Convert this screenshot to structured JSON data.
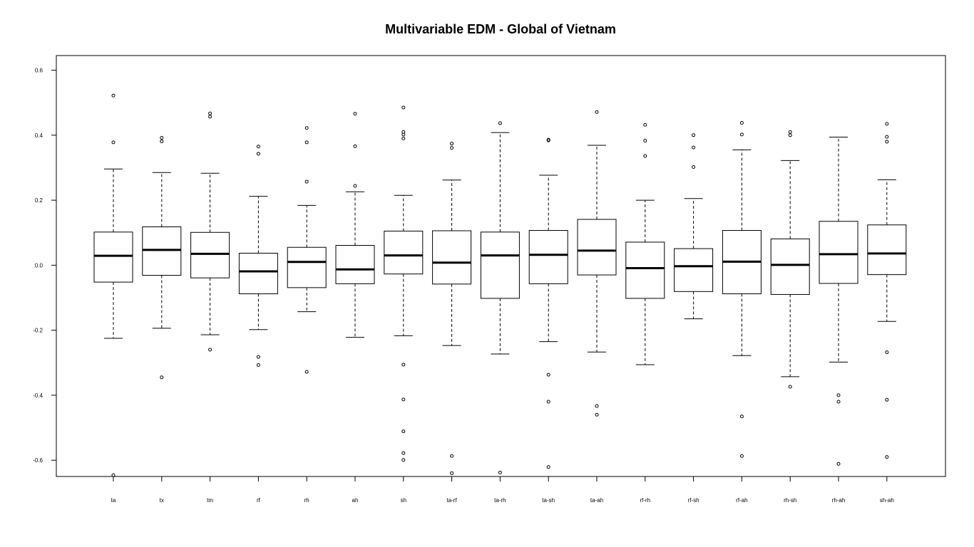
{
  "chart_data": {
    "type": "boxplot",
    "title": "Multivariable EDM - Global of Vietnam",
    "xlabel": "",
    "ylabel": "",
    "ylim": [
      -0.65,
      0.645
    ],
    "yticks": [
      -0.6,
      -0.4,
      -0.2,
      0.0,
      0.2,
      0.4,
      0.6
    ],
    "ytick_labels": [
      "-0.6",
      "-0.4",
      "-0.2",
      "0.0",
      "0.2",
      "0.4",
      "0.6"
    ],
    "grid": false,
    "categories": [
      "ta",
      "tx",
      "tm",
      "rf",
      "rh",
      "ah",
      "sh",
      "ta-rf",
      "ta-rh",
      "ta-sh",
      "ta-ah",
      "rf-rh",
      "rf-sh",
      "rf-ah",
      "rh-sh",
      "rh-ah",
      "sh-ah"
    ],
    "boxes": [
      {
        "label": "ta",
        "whisker_low": -0.225,
        "q1": -0.052,
        "median": 0.029,
        "q3": 0.102,
        "whisker_high": 0.296,
        "outliers": [
          0.522,
          0.378,
          -0.646
        ]
      },
      {
        "label": "tx",
        "whisker_low": -0.194,
        "q1": -0.031,
        "median": 0.047,
        "q3": 0.118,
        "whisker_high": 0.285,
        "outliers": [
          0.392,
          0.381,
          -0.345
        ]
      },
      {
        "label": "tm",
        "whisker_low": -0.214,
        "q1": -0.039,
        "median": 0.035,
        "q3": 0.101,
        "whisker_high": 0.283,
        "outliers": [
          0.467,
          0.457,
          -0.26
        ]
      },
      {
        "label": "rf",
        "whisker_low": -0.198,
        "q1": -0.088,
        "median": -0.019,
        "q3": 0.037,
        "whisker_high": 0.212,
        "outliers": [
          0.365,
          0.343,
          -0.282,
          -0.307
        ]
      },
      {
        "label": "rh",
        "whisker_low": -0.143,
        "q1": -0.069,
        "median": 0.01,
        "q3": 0.055,
        "whisker_high": 0.184,
        "outliers": [
          0.422,
          0.378,
          0.257,
          -0.328
        ]
      },
      {
        "label": "ah",
        "whisker_low": -0.222,
        "q1": -0.057,
        "median": -0.013,
        "q3": 0.061,
        "whisker_high": 0.226,
        "outliers": [
          0.466,
          0.366,
          0.244
        ]
      },
      {
        "label": "sh",
        "whisker_low": -0.217,
        "q1": -0.027,
        "median": 0.03,
        "q3": 0.105,
        "whisker_high": 0.215,
        "outliers": [
          0.485,
          0.41,
          0.402,
          0.39,
          -0.306,
          -0.413,
          -0.511,
          -0.578,
          -0.599
        ]
      },
      {
        "label": "ta-rf",
        "whisker_low": -0.247,
        "q1": -0.058,
        "median": 0.008,
        "q3": 0.106,
        "whisker_high": 0.262,
        "outliers": [
          0.374,
          0.361,
          -0.587,
          -0.64
        ]
      },
      {
        "label": "ta-rh",
        "whisker_low": -0.273,
        "q1": -0.102,
        "median": 0.03,
        "q3": 0.102,
        "whisker_high": 0.408,
        "outliers": [
          0.437,
          -0.638
        ]
      },
      {
        "label": "ta-sh",
        "whisker_low": -0.235,
        "q1": -0.057,
        "median": 0.032,
        "q3": 0.107,
        "whisker_high": 0.277,
        "outliers": [
          0.386,
          0.384,
          -0.337,
          -0.42,
          -0.621
        ]
      },
      {
        "label": "ta-ah",
        "whisker_low": -0.267,
        "q1": -0.03,
        "median": 0.045,
        "q3": 0.141,
        "whisker_high": 0.369,
        "outliers": [
          0.471,
          -0.433,
          -0.46
        ]
      },
      {
        "label": "rf-rh",
        "whisker_low": -0.306,
        "q1": -0.102,
        "median": -0.009,
        "q3": 0.071,
        "whisker_high": 0.2,
        "outliers": [
          0.432,
          0.383,
          0.336
        ]
      },
      {
        "label": "rf-sh",
        "whisker_low": -0.165,
        "q1": -0.081,
        "median": -0.003,
        "q3": 0.051,
        "whisker_high": 0.205,
        "outliers": [
          0.4,
          0.362,
          0.302
        ]
      },
      {
        "label": "rf-ah",
        "whisker_low": -0.278,
        "q1": -0.088,
        "median": 0.011,
        "q3": 0.107,
        "whisker_high": 0.355,
        "outliers": [
          0.438,
          0.402,
          -0.465,
          -0.587
        ]
      },
      {
        "label": "rh-sh",
        "whisker_low": -0.343,
        "q1": -0.09,
        "median": 0.001,
        "q3": 0.081,
        "whisker_high": 0.322,
        "outliers": [
          0.41,
          0.4,
          -0.374
        ]
      },
      {
        "label": "rh-ah",
        "whisker_low": -0.298,
        "q1": -0.056,
        "median": 0.034,
        "q3": 0.135,
        "whisker_high": 0.394,
        "outliers": [
          -0.4,
          -0.42,
          -0.611
        ]
      },
      {
        "label": "sh-ah",
        "whisker_low": -0.173,
        "q1": -0.029,
        "median": 0.036,
        "q3": 0.124,
        "whisker_high": 0.263,
        "outliers": [
          0.435,
          0.395,
          0.38,
          -0.268,
          -0.414,
          -0.59
        ]
      }
    ]
  }
}
